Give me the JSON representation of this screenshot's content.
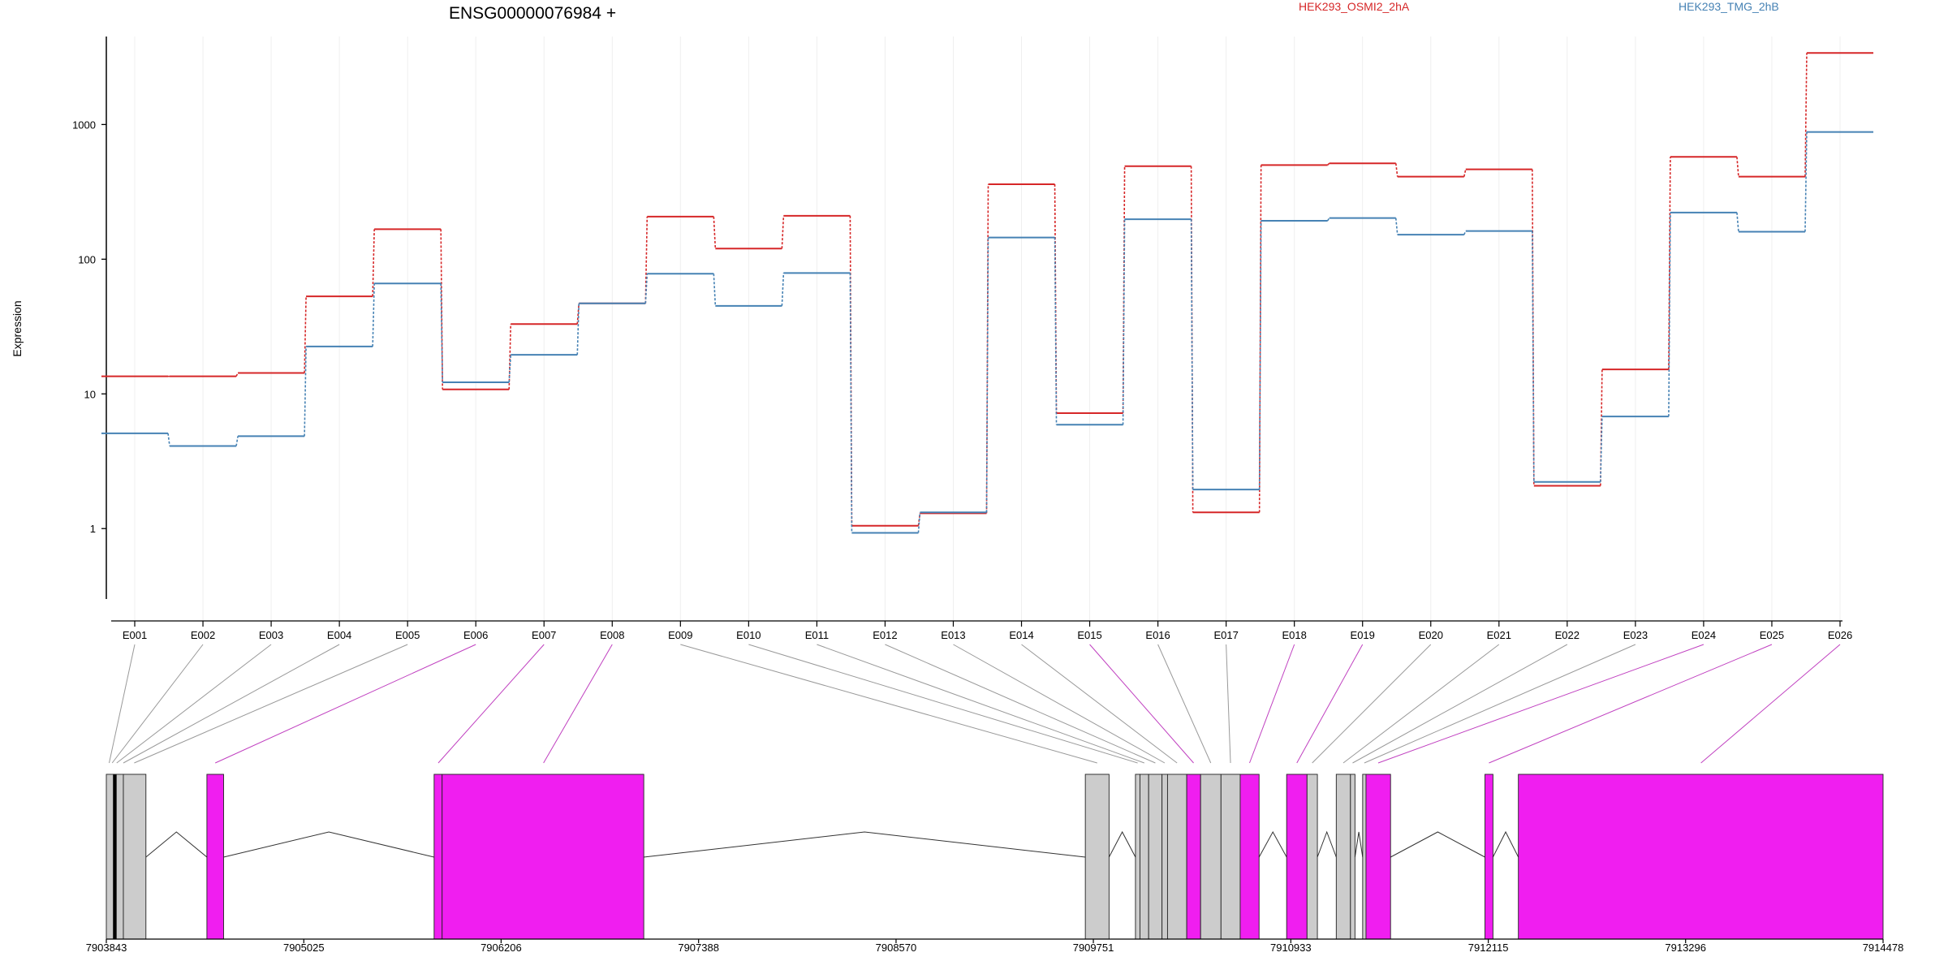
{
  "chart_data": {
    "type": "line",
    "title": "ENSG00000076984 +",
    "xlabel": "",
    "ylabel": "Expression",
    "y_scale": "log",
    "ylim": [
      0.3,
      4500
    ],
    "yticks": [
      1,
      10,
      100,
      1000
    ],
    "ytick_labels": [
      "1",
      "10",
      "100",
      "1000"
    ],
    "categories": [
      "E001",
      "E002",
      "E003",
      "E004",
      "E005",
      "E006",
      "E007",
      "E008",
      "E009",
      "E010",
      "E011",
      "E012",
      "E013",
      "E014",
      "E015",
      "E016",
      "E017",
      "E018",
      "E019",
      "E020",
      "E021",
      "E022",
      "E023",
      "E024",
      "E025",
      "E026"
    ],
    "series": [
      {
        "name": "HEK293_OSMI2_2hA",
        "color": "#d62728",
        "values": [
          13.5,
          13.5,
          14.3,
          53,
          167,
          10.8,
          33,
          47,
          207,
          120,
          210,
          1.05,
          1.3,
          360,
          7.2,
          490,
          1.32,
          500,
          515,
          410,
          465,
          2.08,
          15.2,
          575,
          410,
          3400
        ]
      },
      {
        "name": "HEK293_TMG_2hB",
        "color": "#4682b4",
        "values": [
          5.1,
          4.1,
          4.85,
          22.5,
          66,
          12.2,
          19.5,
          47,
          78,
          45,
          79,
          0.93,
          1.32,
          145,
          5.9,
          198,
          1.95,
          193,
          202,
          152,
          162,
          2.22,
          6.8,
          222,
          160,
          880
        ]
      }
    ],
    "gene_model": {
      "coord_ticks": [
        "7903843",
        "7905025",
        "7906206",
        "7907388",
        "7908570",
        "7909751",
        "7910933",
        "7912115",
        "7913296",
        "7914478"
      ],
      "exons": [
        {
          "start": 7903843,
          "end": 7903885,
          "color": "#cccccc"
        },
        {
          "start": 7903885,
          "end": 7903903,
          "color": "#000000"
        },
        {
          "start": 7903903,
          "end": 7903945,
          "color": "#cccccc"
        },
        {
          "start": 7903945,
          "end": 7904080,
          "color": "#cccccc"
        },
        {
          "start": 7904445,
          "end": 7904545,
          "color": "#f01ef0"
        },
        {
          "start": 7905805,
          "end": 7905853,
          "color": "#f01ef0"
        },
        {
          "start": 7905853,
          "end": 7907060,
          "color": "#f01ef0"
        },
        {
          "start": 7909703,
          "end": 7909845,
          "color": "#cccccc"
        },
        {
          "start": 7910003,
          "end": 7910030,
          "color": "#cccccc"
        },
        {
          "start": 7910030,
          "end": 7910082,
          "color": "#cccccc"
        },
        {
          "start": 7910082,
          "end": 7910162,
          "color": "#cccccc"
        },
        {
          "start": 7910162,
          "end": 7910195,
          "color": "#cccccc"
        },
        {
          "start": 7910195,
          "end": 7910310,
          "color": "#cccccc"
        },
        {
          "start": 7910310,
          "end": 7910393,
          "color": "#f01ef0"
        },
        {
          "start": 7910393,
          "end": 7910515,
          "color": "#cccccc"
        },
        {
          "start": 7910515,
          "end": 7910630,
          "color": "#cccccc"
        },
        {
          "start": 7910630,
          "end": 7910743,
          "color": "#f01ef0"
        },
        {
          "start": 7910908,
          "end": 7911030,
          "color": "#f01ef0"
        },
        {
          "start": 7911030,
          "end": 7911092,
          "color": "#cccccc"
        },
        {
          "start": 7911205,
          "end": 7911290,
          "color": "#cccccc"
        },
        {
          "start": 7911290,
          "end": 7911317,
          "color": "#cccccc"
        },
        {
          "start": 7911363,
          "end": 7911383,
          "color": "#cccccc"
        },
        {
          "start": 7911383,
          "end": 7911530,
          "color": "#f01ef0"
        },
        {
          "start": 7912095,
          "end": 7912143,
          "color": "#f01ef0"
        },
        {
          "start": 7912295,
          "end": 7914478,
          "color": "#f01ef0"
        }
      ],
      "exon_connectors": [
        {
          "exon": "E001",
          "pos": 7903860,
          "color": "#999999"
        },
        {
          "exon": "E002",
          "pos": 7903878,
          "color": "#999999"
        },
        {
          "exon": "E003",
          "pos": 7903905,
          "color": "#999999"
        },
        {
          "exon": "E004",
          "pos": 7903945,
          "color": "#999999"
        },
        {
          "exon": "E005",
          "pos": 7904010,
          "color": "#999999"
        },
        {
          "exon": "E006",
          "pos": 7904495,
          "color": "#c040c0"
        },
        {
          "exon": "E007",
          "pos": 7905830,
          "color": "#c040c0"
        },
        {
          "exon": "E008",
          "pos": 7906460,
          "color": "#c040c0"
        },
        {
          "exon": "E009",
          "pos": 7909774,
          "color": "#999999"
        },
        {
          "exon": "E010",
          "pos": 7910016,
          "color": "#999999"
        },
        {
          "exon": "E011",
          "pos": 7910056,
          "color": "#999999"
        },
        {
          "exon": "E012",
          "pos": 7910122,
          "color": "#999999"
        },
        {
          "exon": "E013",
          "pos": 7910178,
          "color": "#999999"
        },
        {
          "exon": "E014",
          "pos": 7910252,
          "color": "#999999"
        },
        {
          "exon": "E015",
          "pos": 7910351,
          "color": "#c040c0"
        },
        {
          "exon": "E016",
          "pos": 7910454,
          "color": "#999999"
        },
        {
          "exon": "E017",
          "pos": 7910572,
          "color": "#999999"
        },
        {
          "exon": "E018",
          "pos": 7910686,
          "color": "#c040c0"
        },
        {
          "exon": "E019",
          "pos": 7910969,
          "color": "#c040c0"
        },
        {
          "exon": "E020",
          "pos": 7911061,
          "color": "#999999"
        },
        {
          "exon": "E021",
          "pos": 7911247,
          "color": "#999999"
        },
        {
          "exon": "E022",
          "pos": 7911303,
          "color": "#999999"
        },
        {
          "exon": "E023",
          "pos": 7911373,
          "color": "#999999"
        },
        {
          "exon": "E024",
          "pos": 7911456,
          "color": "#c040c0"
        },
        {
          "exon": "E025",
          "pos": 7912119,
          "color": "#c040c0"
        },
        {
          "exon": "E026",
          "pos": 7913388,
          "color": "#c040c0"
        }
      ],
      "introns": [
        [
          7904080,
          7904445
        ],
        [
          7904545,
          7905805
        ],
        [
          7907060,
          7909703
        ],
        [
          7909845,
          7910003
        ],
        [
          7910743,
          7910908
        ],
        [
          7911092,
          7911205
        ],
        [
          7911317,
          7911363
        ],
        [
          7911530,
          7912095
        ],
        [
          7912143,
          7912295
        ]
      ]
    }
  }
}
